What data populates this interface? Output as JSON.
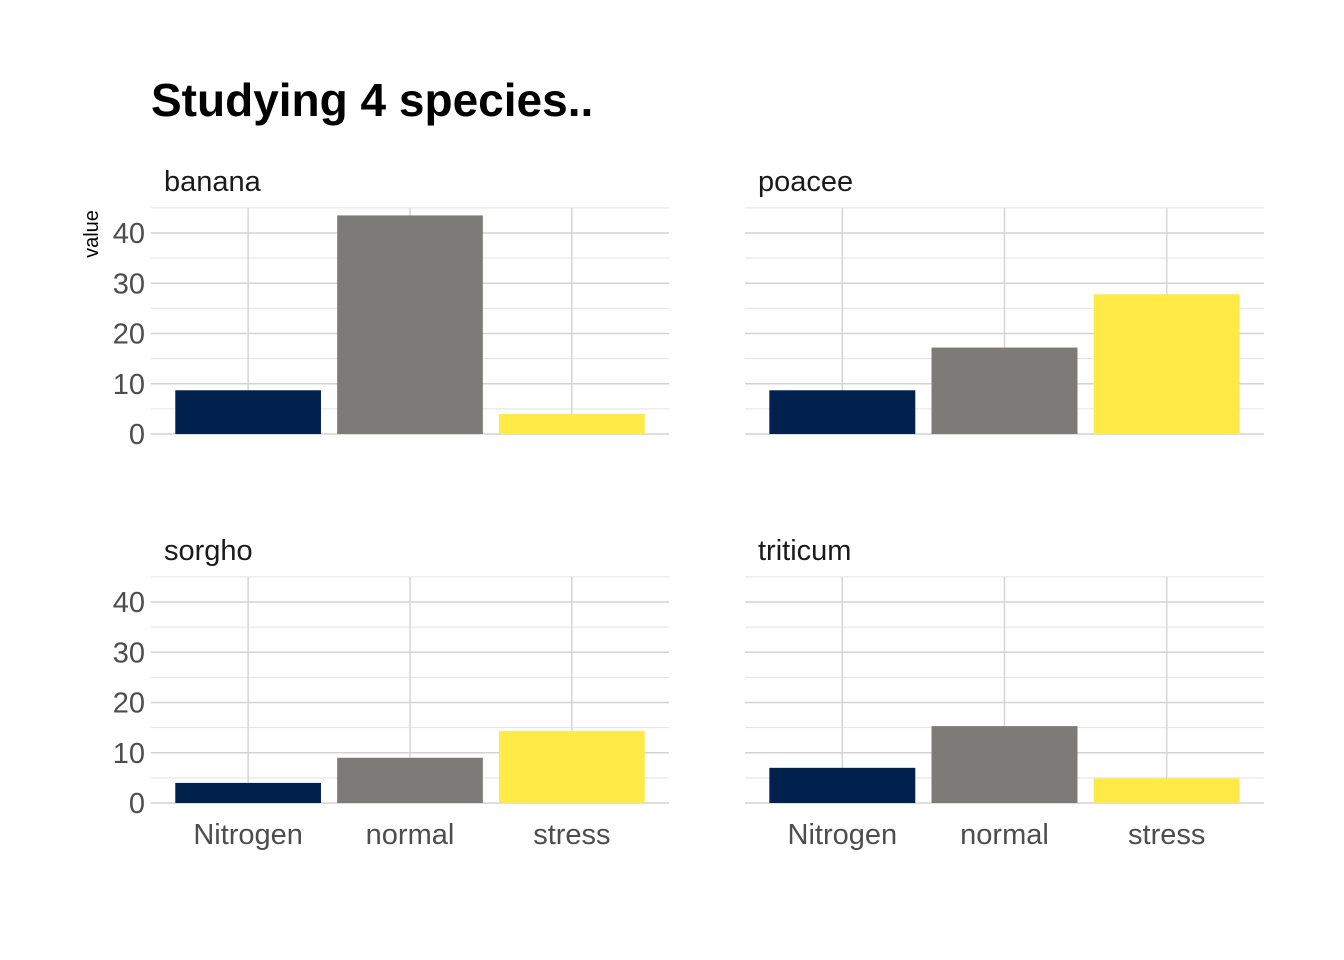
{
  "title": "Studying 4 species..",
  "chart_data": {
    "type": "bar",
    "title": "Studying 4 species..",
    "xlabel": "",
    "ylabel": "value",
    "ylim": [
      0,
      45
    ],
    "yticks": [
      "0",
      "10",
      "20",
      "30",
      "40"
    ],
    "categories": [
      "Nitrogen",
      "normal",
      "stress"
    ],
    "colors": {
      "Nitrogen": "#00204d",
      "normal": "#7c7b78",
      "stress": "#ffea46"
    },
    "grid": true,
    "legend": "none",
    "facets": [
      {
        "label": "banana",
        "values": [
          8.7,
          43.5,
          4.0
        ]
      },
      {
        "label": "poacee",
        "values": [
          8.7,
          17.2,
          27.8
        ]
      },
      {
        "label": "sorgho",
        "values": [
          4.0,
          9.0,
          14.3
        ]
      },
      {
        "label": "triticum",
        "values": [
          7.0,
          15.3,
          4.9
        ]
      }
    ]
  }
}
